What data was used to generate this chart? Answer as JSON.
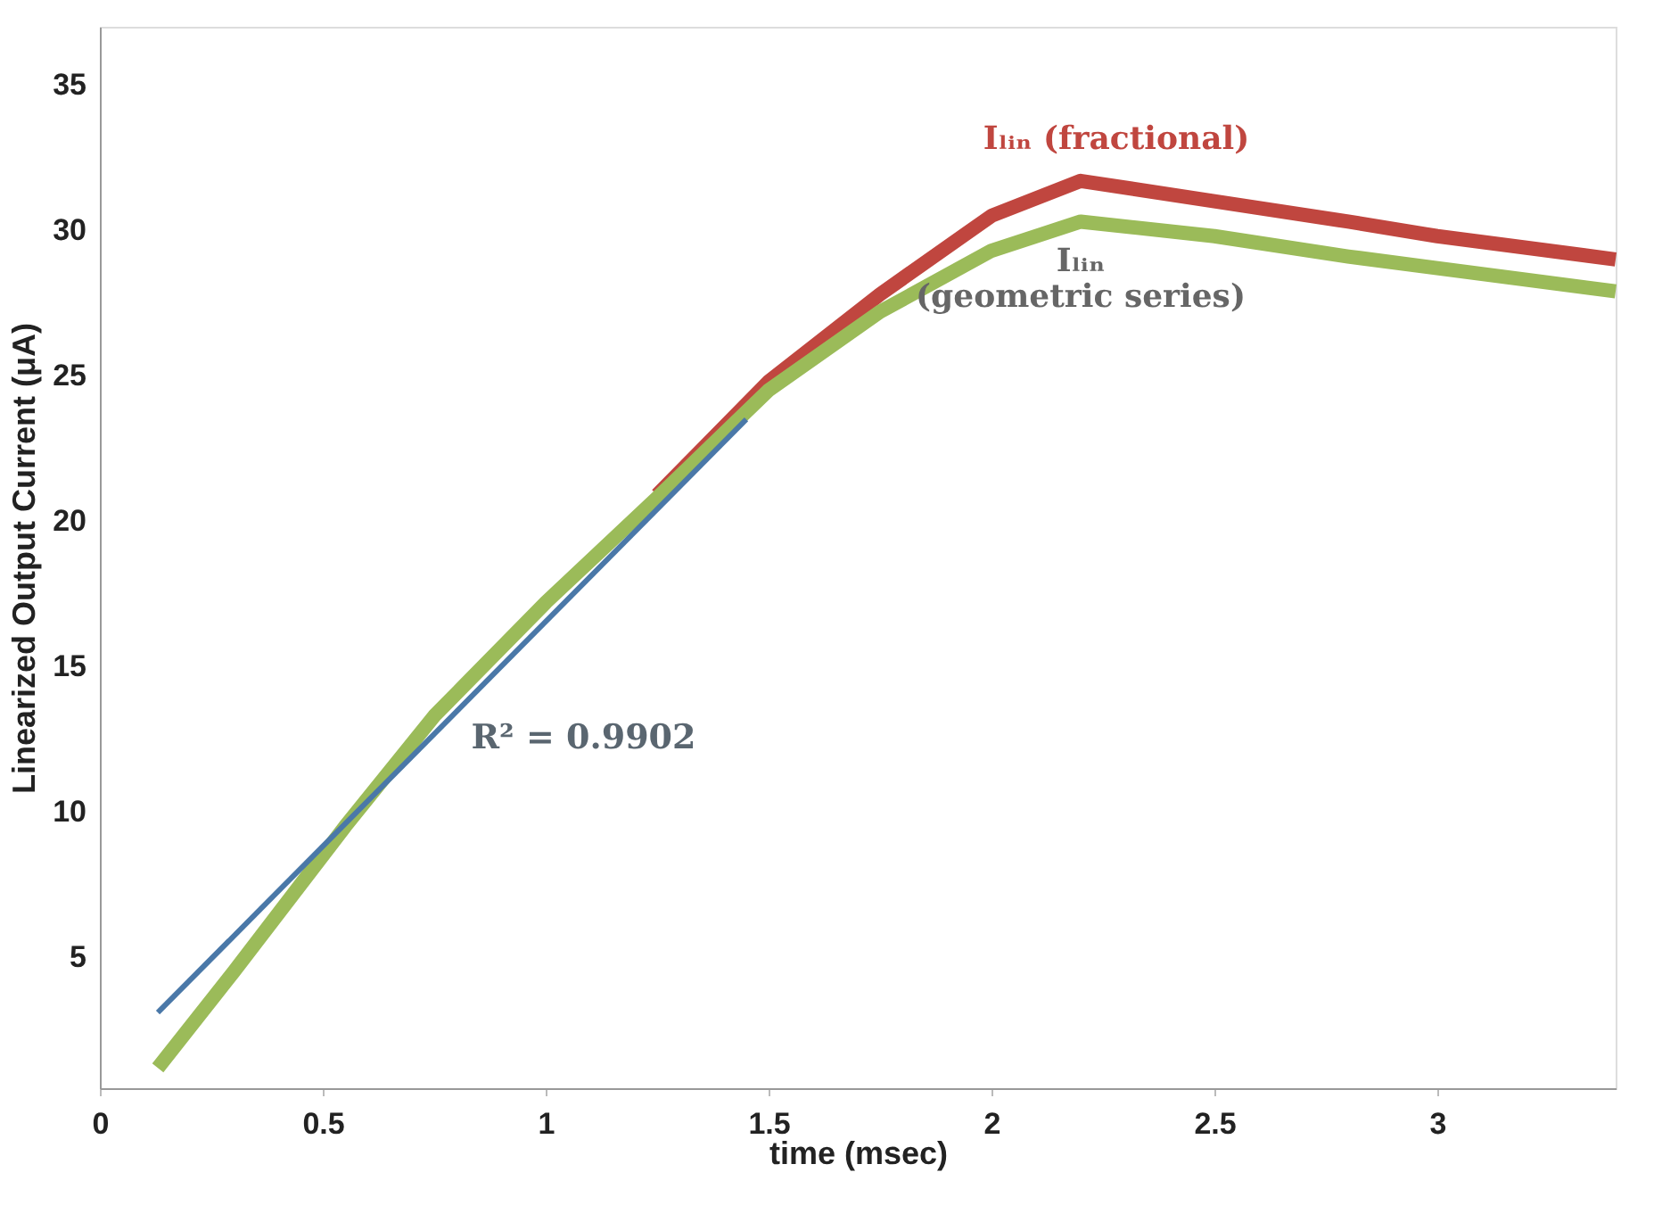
{
  "chart_data": {
    "type": "line",
    "xlabel": "time (msec)",
    "ylabel": "Linearized Output Current (μA)",
    "xlim": [
      0,
      3.4
    ],
    "ylim": [
      0.5,
      37
    ],
    "xticks": [
      0,
      0.5,
      1,
      1.5,
      2,
      2.5,
      3
    ],
    "yticks": [
      5,
      10,
      15,
      20,
      25,
      30,
      35
    ],
    "grid": false,
    "marker": "none",
    "line_style": "solid",
    "series": [
      {
        "name": "Iₗᵢₙ (fractional)",
        "color": "#c0463f",
        "x": [
          1.25,
          1.5,
          1.75,
          2.0,
          2.2,
          2.5,
          2.8,
          3.0,
          3.2,
          3.4
        ],
        "values": [
          20.9,
          24.8,
          27.8,
          30.5,
          31.7,
          31.0,
          30.3,
          29.8,
          29.4,
          29.0
        ]
      },
      {
        "name": "Iₗᵢₙ\n(geometric series)",
        "color": "#9bbb59",
        "x": [
          0.13,
          0.3,
          0.55,
          0.75,
          1.0,
          1.25,
          1.5,
          1.75,
          2.0,
          2.2,
          2.5,
          2.8,
          3.0,
          3.2,
          3.4
        ],
        "values": [
          1.2,
          4.5,
          9.5,
          13.3,
          17.2,
          20.8,
          24.5,
          27.2,
          29.3,
          30.3,
          29.8,
          29.1,
          28.7,
          28.3,
          27.9
        ]
      },
      {
        "type": "line",
        "color": "#4a78a8",
        "x": [
          0.13,
          1.45
        ],
        "values": [
          3.1,
          23.5
        ]
      }
    ],
    "annotations": [
      "R² = 0.9902"
    ]
  }
}
